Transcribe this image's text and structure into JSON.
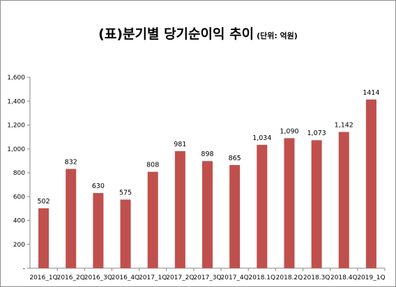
{
  "chart_data": {
    "type": "bar",
    "title": "(표)분기별 당기순이익 추이",
    "subtitle": "(단위: 억원)",
    "categories": [
      "2016_1Q",
      "2016_2Q",
      "2016_3Q",
      "2016_4Q",
      "2017_1Q",
      "2017_2Q",
      "2017_3Q",
      "2017_4Q",
      "2018.1Q",
      "2018.2Q",
      "2018.3Q",
      "2018.4Q",
      "2019_1Q"
    ],
    "values": [
      502,
      832,
      630,
      575,
      808,
      981,
      898,
      865,
      1034,
      1090,
      1073,
      1142,
      1414
    ],
    "data_labels": [
      "502",
      "832",
      "630",
      "575",
      "808",
      "981",
      "898",
      "865",
      "1,034",
      "1,090",
      "1,073",
      "1,142",
      "1414"
    ],
    "y_ticks": [
      "-",
      "200",
      "400",
      "600",
      "800",
      "1,000",
      "1,200",
      "1,400",
      "1,600"
    ],
    "ylim": [
      0,
      1600
    ],
    "grid": false,
    "legend": "none",
    "bar_color": "#c0504d",
    "axis_color": "#868686"
  }
}
